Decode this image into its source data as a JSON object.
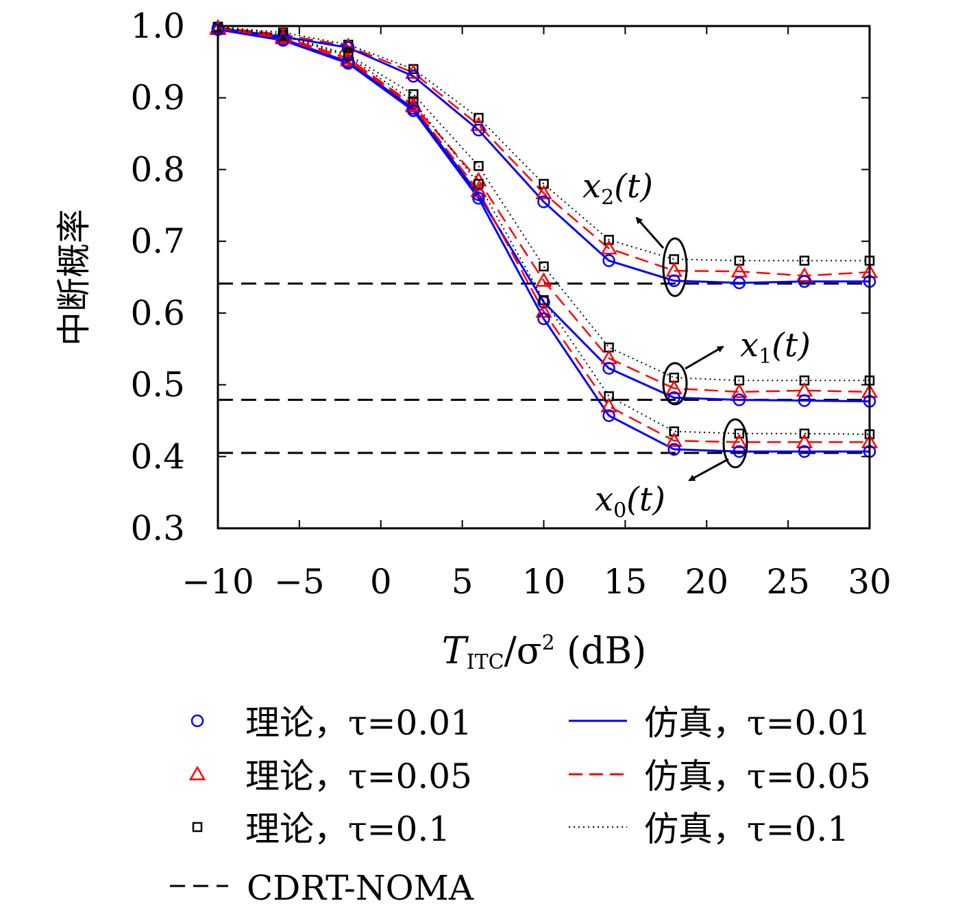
{
  "chart_data": {
    "type": "line",
    "xlabel": "T_ITC/σ² (dB)",
    "xlabel_main": "T",
    "xlabel_sub": "ITC",
    "xlabel_rest": "/σ",
    "xlabel_sup": "2",
    "xlabel_unit": " (dB)",
    "ylabel": "中断概率",
    "xlim": [
      -10,
      30
    ],
    "ylim": [
      0.3,
      1.0
    ],
    "xticks": [
      -10,
      -5,
      0,
      5,
      10,
      15,
      20,
      25,
      30
    ],
    "xtick_labels": [
      "−10",
      "−5",
      "0",
      "5",
      "10",
      "15",
      "20",
      "25",
      "30"
    ],
    "yticks": [
      0.3,
      0.4,
      0.5,
      0.6,
      0.7,
      0.8,
      0.9,
      1.0
    ],
    "ytick_labels": [
      "0.3",
      "0.4",
      "0.5",
      "0.6",
      "0.7",
      "0.8",
      "0.9",
      "1.0"
    ],
    "x": [
      -10,
      -6,
      -2,
      2,
      6,
      10,
      14,
      18,
      22,
      26,
      30
    ],
    "groups": [
      {
        "user": "x2",
        "tau_0.01": [
          0.997,
          0.985,
          0.97,
          0.93,
          0.855,
          0.755,
          0.673,
          0.645,
          0.642,
          0.644,
          0.644
        ],
        "tau_0.05": [
          0.998,
          0.988,
          0.972,
          0.935,
          0.862,
          0.767,
          0.69,
          0.659,
          0.658,
          0.652,
          0.657
        ],
        "tau_0.1": [
          0.999,
          0.991,
          0.974,
          0.94,
          0.872,
          0.78,
          0.702,
          0.675,
          0.673,
          0.673,
          0.673
        ]
      },
      {
        "user": "x1",
        "tau_0.01": [
          0.996,
          0.982,
          0.95,
          0.885,
          0.765,
          0.615,
          0.523,
          0.482,
          0.479,
          0.478,
          0.477
        ],
        "tau_0.05": [
          0.997,
          0.985,
          0.955,
          0.89,
          0.785,
          0.645,
          0.537,
          0.495,
          0.49,
          0.492,
          0.49
        ],
        "tau_0.1": [
          0.999,
          0.988,
          0.96,
          0.905,
          0.805,
          0.665,
          0.552,
          0.51,
          0.506,
          0.506,
          0.506
        ]
      },
      {
        "user": "x0",
        "tau_0.01": [
          0.995,
          0.98,
          0.948,
          0.882,
          0.76,
          0.592,
          0.457,
          0.41,
          0.407,
          0.407,
          0.407
        ],
        "tau_0.05": [
          0.996,
          0.983,
          0.952,
          0.888,
          0.77,
          0.602,
          0.47,
          0.422,
          0.42,
          0.42,
          0.42
        ],
        "tau_0.1": [
          0.998,
          0.986,
          0.958,
          0.895,
          0.78,
          0.618,
          0.484,
          0.435,
          0.432,
          0.432,
          0.431
        ]
      }
    ],
    "cdrt_noma": [
      0.641,
      0.479,
      0.405
    ],
    "annotations": [
      {
        "var": "x",
        "sub": "2",
        "rest": "(t)"
      },
      {
        "var": "x",
        "sub": "1",
        "rest": "(t)"
      },
      {
        "var": "x",
        "sub": "0",
        "rest": "(t)"
      }
    ],
    "legend": [
      {
        "label": "理论，τ=0.01",
        "marker": "circle",
        "color": "#0000ff"
      },
      {
        "label": "仿真，τ=0.01",
        "line": "solid",
        "color": "#0000ff"
      },
      {
        "label": "理论，τ=0.05",
        "marker": "triangle",
        "color": "#ff0000"
      },
      {
        "label": "仿真，τ=0.05",
        "line": "dashed",
        "color": "#ff0000"
      },
      {
        "label": "理论，τ=0.1",
        "marker": "square",
        "color": "#000000"
      },
      {
        "label": "仿真，τ=0.1",
        "line": "dotted",
        "color": "#000000"
      },
      {
        "label": "CDRT-NOMA",
        "line": "dashed-thick",
        "color": "#000000"
      }
    ],
    "legend_placement": "below",
    "grid": false
  }
}
